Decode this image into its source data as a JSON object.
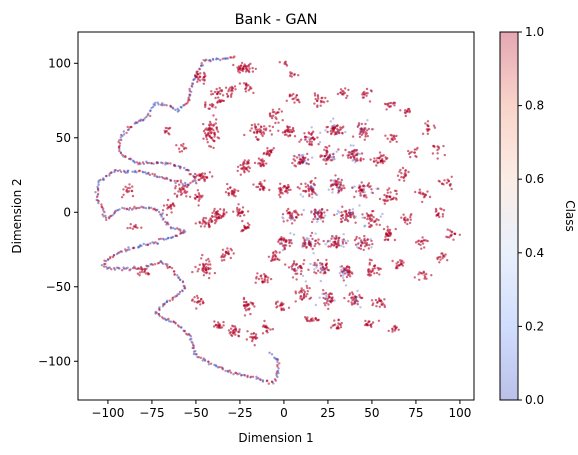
{
  "chart_data": {
    "type": "scatter",
    "title": "Bank - GAN",
    "xlabel": "Dimension 1",
    "ylabel": "Dimension 2",
    "xlim": [
      -117,
      108
    ],
    "ylim": [
      -126,
      121
    ],
    "xticks": [
      -100,
      -75,
      -50,
      -25,
      0,
      25,
      50,
      75,
      100
    ],
    "yticks": [
      -100,
      -50,
      0,
      50,
      100
    ],
    "grid": false,
    "colormap": "coolwarm",
    "point_alpha": 0.35,
    "colorbar": {
      "label": "Class",
      "range": [
        0,
        1
      ],
      "ticks": [
        0.0,
        0.2,
        0.4,
        0.6,
        0.8,
        1.0
      ],
      "tick_labels": [
        "0.0",
        "0.2",
        "0.4",
        "0.6",
        "0.8",
        "1.0"
      ],
      "colors": [
        "#3b4cc0",
        "#7b9ff9",
        "#c0d4f5",
        "#f2cbb7",
        "#ee8468",
        "#b40426"
      ]
    },
    "series": [
      {
        "class": "mixed",
        "label": "serpentine curve (class 0 and class 1 overlapping)",
        "path": [
          [
            -28,
            104
          ],
          [
            -45,
            102
          ],
          [
            -50,
            92
          ],
          [
            -53,
            83
          ],
          [
            -55,
            73
          ],
          [
            -60,
            68
          ],
          [
            -64,
            71
          ],
          [
            -73,
            73
          ],
          [
            -78,
            64
          ],
          [
            -84,
            60
          ],
          [
            -92,
            52
          ],
          [
            -94,
            43
          ],
          [
            -91,
            38
          ],
          [
            -83,
            33
          ],
          [
            -66,
            33
          ],
          [
            -56,
            29
          ],
          [
            -50,
            23
          ],
          [
            -54,
            18
          ],
          [
            -65,
            22
          ],
          [
            -80,
            27
          ],
          [
            -96,
            28
          ],
          [
            -106,
            20
          ],
          [
            -106,
            8
          ],
          [
            -101,
            -5
          ],
          [
            -93,
            2
          ],
          [
            -81,
            3
          ],
          [
            -72,
            2
          ],
          [
            -65,
            -10
          ],
          [
            -56,
            -13
          ],
          [
            -62,
            -16
          ],
          [
            -76,
            -21
          ],
          [
            -90,
            -25
          ],
          [
            -102,
            -33
          ],
          [
            -102,
            -37
          ],
          [
            -96,
            -38
          ],
          [
            -88,
            -38
          ],
          [
            -79,
            -37
          ],
          [
            -70,
            -33
          ],
          [
            -64,
            -37
          ],
          [
            -59,
            -45
          ],
          [
            -56,
            -51
          ],
          [
            -61,
            -56
          ],
          [
            -68,
            -61
          ],
          [
            -73,
            -67
          ],
          [
            -69,
            -71
          ],
          [
            -61,
            -75
          ],
          [
            -54,
            -82
          ],
          [
            -52,
            -89
          ],
          [
            -51,
            -95
          ],
          [
            -47,
            -98
          ],
          [
            -41,
            -102
          ],
          [
            -35,
            -105
          ],
          [
            -28,
            -108
          ],
          [
            -20,
            -110
          ],
          [
            -12,
            -113
          ],
          [
            -6,
            -114
          ],
          [
            -4,
            -110
          ],
          [
            -3,
            -100
          ],
          [
            -8,
            -94
          ]
        ]
      },
      {
        "class": 1,
        "label": "clusters",
        "clusters": [
          [
            -47,
            91,
            3,
            3,
            24
          ],
          [
            -23,
            96,
            5,
            3,
            40
          ],
          [
            -38,
            80,
            3,
            3,
            18
          ],
          [
            -42,
            71,
            3,
            2,
            12
          ],
          [
            -30,
            81,
            3,
            3,
            18
          ],
          [
            -21,
            84,
            3,
            3,
            16
          ],
          [
            -42,
            54,
            4,
            8,
            60
          ],
          [
            -36,
            75,
            3,
            2,
            10
          ],
          [
            -66,
            55,
            2,
            2,
            10
          ],
          [
            -58,
            42,
            2,
            3,
            10
          ],
          [
            -58,
            15,
            3,
            4,
            25
          ],
          [
            -46,
            23,
            4,
            3,
            20
          ],
          [
            -49,
            10,
            3,
            3,
            18
          ],
          [
            -47,
            25,
            2,
            2,
            8
          ],
          [
            -38,
            -2,
            4,
            4,
            45
          ],
          [
            -45,
            -7,
            3,
            3,
            20
          ],
          [
            -65,
            5,
            3,
            3,
            18
          ],
          [
            -88,
            14,
            3,
            3,
            15
          ],
          [
            -85,
            -10,
            3,
            2,
            10
          ],
          [
            -80,
            -40,
            3,
            3,
            15
          ],
          [
            -45,
            -37,
            4,
            5,
            40
          ],
          [
            -22,
            30,
            3,
            4,
            30
          ],
          [
            -30,
            14,
            3,
            3,
            22
          ],
          [
            -13,
            17,
            3,
            3,
            20
          ],
          [
            -12,
            33,
            3,
            3,
            18
          ],
          [
            -15,
            55,
            5,
            4,
            40
          ],
          [
            -9,
            40,
            3,
            3,
            20
          ],
          [
            -25,
            0,
            3,
            3,
            22
          ],
          [
            -22,
            -10,
            3,
            3,
            18
          ],
          [
            -33,
            -28,
            3,
            3,
            22
          ],
          [
            -12,
            -45,
            3,
            3,
            24
          ],
          [
            -20,
            -62,
            3,
            4,
            28
          ],
          [
            -28,
            -80,
            3,
            3,
            25
          ],
          [
            -37,
            -76,
            3,
            3,
            18
          ],
          [
            -48,
            -60,
            3,
            3,
            18
          ],
          [
            -18,
            -85,
            3,
            3,
            18
          ],
          [
            -10,
            -78,
            3,
            3,
            16
          ],
          [
            5,
            76,
            3,
            3,
            16
          ],
          [
            20,
            75,
            4,
            3,
            20
          ],
          [
            33,
            80,
            3,
            3,
            14
          ],
          [
            47,
            79,
            3,
            3,
            14
          ],
          [
            60,
            72,
            3,
            3,
            14
          ],
          [
            70,
            68,
            3,
            3,
            12
          ],
          [
            82,
            57,
            3,
            3,
            14
          ],
          [
            88,
            42,
            3,
            3,
            12
          ],
          [
            73,
            40,
            3,
            3,
            12
          ],
          [
            62,
            50,
            3,
            3,
            14
          ],
          [
            45,
            55,
            4,
            4,
            30
          ],
          [
            30,
            55,
            5,
            4,
            40
          ],
          [
            15,
            50,
            4,
            4,
            30
          ],
          [
            2,
            55,
            4,
            4,
            30
          ],
          [
            -5,
            66,
            3,
            3,
            18
          ],
          [
            10,
            35,
            4,
            4,
            35
          ],
          [
            25,
            38,
            4,
            4,
            35
          ],
          [
            40,
            38,
            4,
            4,
            35
          ],
          [
            55,
            35,
            4,
            4,
            30
          ],
          [
            68,
            25,
            3,
            3,
            18
          ],
          [
            80,
            12,
            3,
            3,
            15
          ],
          [
            92,
            20,
            3,
            3,
            15
          ],
          [
            88,
            0,
            3,
            3,
            15
          ],
          [
            95,
            -15,
            3,
            3,
            15
          ],
          [
            90,
            -30,
            3,
            3,
            14
          ],
          [
            78,
            -20,
            3,
            3,
            16
          ],
          [
            70,
            -5,
            3,
            3,
            16
          ],
          [
            60,
            10,
            4,
            4,
            28
          ],
          [
            45,
            15,
            4,
            4,
            35
          ],
          [
            30,
            18,
            4,
            4,
            35
          ],
          [
            15,
            15,
            4,
            4,
            35
          ],
          [
            0,
            15,
            4,
            4,
            30
          ],
          [
            5,
            -2,
            4,
            4,
            30
          ],
          [
            20,
            -2,
            4,
            4,
            35
          ],
          [
            35,
            -2,
            4,
            4,
            35
          ],
          [
            50,
            -5,
            4,
            4,
            30
          ],
          [
            60,
            -15,
            4,
            4,
            28
          ],
          [
            45,
            -20,
            4,
            4,
            30
          ],
          [
            30,
            -20,
            4,
            4,
            35
          ],
          [
            15,
            -20,
            4,
            4,
            35
          ],
          [
            0,
            -20,
            4,
            4,
            30
          ],
          [
            -5,
            -30,
            3,
            3,
            20
          ],
          [
            8,
            -38,
            4,
            4,
            30
          ],
          [
            22,
            -38,
            4,
            4,
            30
          ],
          [
            36,
            -40,
            4,
            4,
            30
          ],
          [
            50,
            -38,
            4,
            4,
            28
          ],
          [
            66,
            -35,
            3,
            3,
            18
          ],
          [
            80,
            -42,
            3,
            3,
            14
          ],
          [
            10,
            -55,
            4,
            4,
            28
          ],
          [
            25,
            -58,
            4,
            4,
            28
          ],
          [
            40,
            -58,
            4,
            4,
            28
          ],
          [
            55,
            -60,
            3,
            3,
            20
          ],
          [
            -2,
            -62,
            3,
            3,
            18
          ],
          [
            15,
            -72,
            3,
            3,
            18
          ],
          [
            30,
            -75,
            3,
            3,
            18
          ],
          [
            48,
            -75,
            3,
            3,
            16
          ],
          [
            62,
            -78,
            3,
            2,
            12
          ],
          [
            5,
            92,
            2,
            2,
            8
          ],
          [
            0,
            100,
            2,
            2,
            6
          ]
        ]
      },
      {
        "class": 0,
        "label": "interleaved points",
        "clusters": [
          [
            10,
            35,
            5,
            5,
            10
          ],
          [
            25,
            38,
            5,
            5,
            10
          ],
          [
            40,
            38,
            5,
            5,
            10
          ],
          [
            30,
            18,
            5,
            5,
            10
          ],
          [
            15,
            15,
            5,
            5,
            10
          ],
          [
            20,
            -2,
            5,
            5,
            12
          ],
          [
            35,
            -2,
            5,
            5,
            10
          ],
          [
            30,
            -20,
            5,
            5,
            12
          ],
          [
            15,
            -20,
            5,
            5,
            10
          ],
          [
            22,
            -38,
            5,
            5,
            10
          ],
          [
            36,
            -40,
            5,
            5,
            10
          ],
          [
            25,
            -58,
            5,
            5,
            8
          ],
          [
            40,
            -58,
            5,
            5,
            8
          ],
          [
            45,
            15,
            5,
            5,
            8
          ],
          [
            30,
            55,
            5,
            5,
            8
          ],
          [
            45,
            55,
            5,
            5,
            6
          ],
          [
            50,
            -5,
            5,
            5,
            6
          ],
          [
            45,
            -20,
            5,
            5,
            6
          ],
          [
            15,
            50,
            5,
            5,
            6
          ],
          [
            5,
            -2,
            5,
            5,
            6
          ],
          [
            8,
            -38,
            5,
            5,
            6
          ],
          [
            0,
            -20,
            5,
            5,
            6
          ]
        ]
      }
    ]
  }
}
